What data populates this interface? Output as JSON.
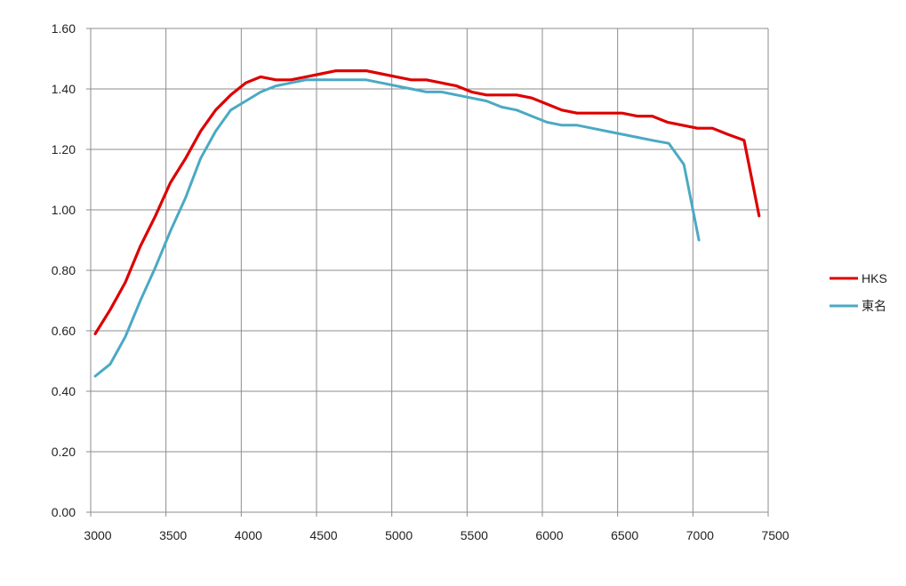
{
  "chart_data": {
    "type": "line",
    "xlim": [
      3000,
      7500
    ],
    "ylim": [
      0,
      1.6
    ],
    "x_ticks": [
      3000,
      3500,
      4000,
      4500,
      5000,
      5500,
      6000,
      6500,
      7000,
      7500
    ],
    "x_tick_labels": [
      "3000",
      "3500",
      "4000",
      "4500",
      "5000",
      "5500",
      "6000",
      "6500",
      "7000",
      "7500"
    ],
    "y_ticks": [
      0,
      0.2,
      0.4,
      0.6,
      0.8,
      1.0,
      1.2,
      1.4,
      1.6
    ],
    "y_tick_labels": [
      "0.00",
      "0.20",
      "0.40",
      "0.60",
      "0.80",
      "1.00",
      "1.20",
      "1.40",
      "1.60"
    ],
    "grid": true,
    "legend_position": "right",
    "series": [
      {
        "name": "HKS",
        "color": "#dd0000",
        "points": [
          [
            3030,
            0.59
          ],
          [
            3130,
            0.67
          ],
          [
            3230,
            0.76
          ],
          [
            3330,
            0.88
          ],
          [
            3430,
            0.98
          ],
          [
            3530,
            1.09
          ],
          [
            3630,
            1.17
          ],
          [
            3730,
            1.26
          ],
          [
            3830,
            1.33
          ],
          [
            3930,
            1.38
          ],
          [
            4030,
            1.42
          ],
          [
            4130,
            1.44
          ],
          [
            4230,
            1.43
          ],
          [
            4330,
            1.43
          ],
          [
            4430,
            1.44
          ],
          [
            4530,
            1.45
          ],
          [
            4630,
            1.46
          ],
          [
            4730,
            1.46
          ],
          [
            4830,
            1.46
          ],
          [
            4930,
            1.45
          ],
          [
            5030,
            1.44
          ],
          [
            5130,
            1.43
          ],
          [
            5230,
            1.43
          ],
          [
            5330,
            1.42
          ],
          [
            5430,
            1.41
          ],
          [
            5530,
            1.39
          ],
          [
            5630,
            1.38
          ],
          [
            5730,
            1.38
          ],
          [
            5830,
            1.38
          ],
          [
            5930,
            1.37
          ],
          [
            6030,
            1.35
          ],
          [
            6130,
            1.33
          ],
          [
            6230,
            1.32
          ],
          [
            6330,
            1.32
          ],
          [
            6430,
            1.32
          ],
          [
            6530,
            1.32
          ],
          [
            6630,
            1.31
          ],
          [
            6730,
            1.31
          ],
          [
            6830,
            1.29
          ],
          [
            6930,
            1.28
          ],
          [
            7030,
            1.27
          ],
          [
            7130,
            1.27
          ],
          [
            7230,
            1.25
          ],
          [
            7340,
            1.23
          ],
          [
            7440,
            0.98
          ]
        ]
      },
      {
        "name": "東名",
        "color": "#4ba9c4",
        "points": [
          [
            3030,
            0.45
          ],
          [
            3130,
            0.49
          ],
          [
            3230,
            0.58
          ],
          [
            3330,
            0.7
          ],
          [
            3430,
            0.81
          ],
          [
            3530,
            0.93
          ],
          [
            3630,
            1.04
          ],
          [
            3730,
            1.17
          ],
          [
            3830,
            1.26
          ],
          [
            3930,
            1.33
          ],
          [
            4030,
            1.36
          ],
          [
            4130,
            1.39
          ],
          [
            4230,
            1.41
          ],
          [
            4330,
            1.42
          ],
          [
            4430,
            1.43
          ],
          [
            4530,
            1.43
          ],
          [
            4630,
            1.43
          ],
          [
            4730,
            1.43
          ],
          [
            4830,
            1.43
          ],
          [
            4930,
            1.42
          ],
          [
            5030,
            1.41
          ],
          [
            5130,
            1.4
          ],
          [
            5230,
            1.39
          ],
          [
            5330,
            1.39
          ],
          [
            5430,
            1.38
          ],
          [
            5530,
            1.37
          ],
          [
            5630,
            1.36
          ],
          [
            5730,
            1.34
          ],
          [
            5830,
            1.33
          ],
          [
            5930,
            1.31
          ],
          [
            6030,
            1.29
          ],
          [
            6130,
            1.28
          ],
          [
            6230,
            1.28
          ],
          [
            6330,
            1.27
          ],
          [
            6430,
            1.26
          ],
          [
            6530,
            1.25
          ],
          [
            6630,
            1.24
          ],
          [
            6730,
            1.23
          ],
          [
            6840,
            1.22
          ],
          [
            6940,
            1.15
          ],
          [
            7040,
            0.9
          ]
        ]
      }
    ]
  }
}
